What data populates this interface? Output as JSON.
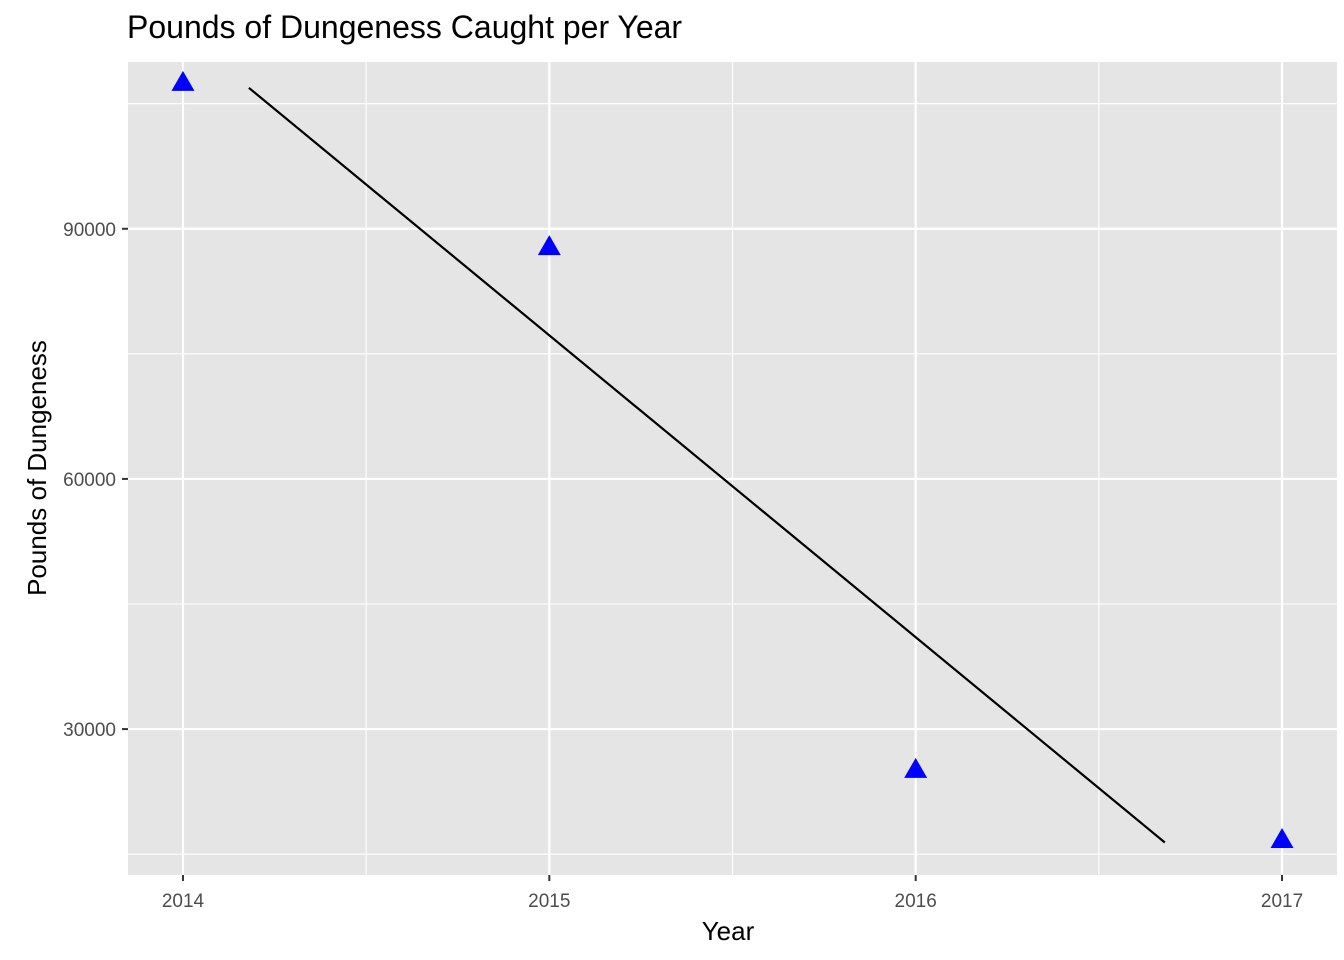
{
  "chart_data": {
    "type": "scatter",
    "title": "Pounds of Dungeness Caught per Year",
    "xlabel": "Year",
    "ylabel": "Pounds of Dungeness",
    "x_ticks": [
      "2014",
      "2015",
      "2016",
      "2017"
    ],
    "y_ticks": [
      "30000",
      "60000",
      "90000"
    ],
    "xlim": [
      2013.85,
      2017.15
    ],
    "ylim": [
      12500,
      110000
    ],
    "grid": true,
    "series": [
      {
        "marker": "triangle",
        "color": "#0000ff",
        "points": [
          {
            "x": 2014,
            "y": 107500
          },
          {
            "x": 2015,
            "y": 87800
          },
          {
            "x": 2016,
            "y": 25100
          },
          {
            "x": 2017,
            "y": 16700
          }
        ]
      }
    ],
    "trend_line": {
      "color": "#000000",
      "x": [
        2014.18,
        2016.68
      ],
      "y": [
        106900,
        16400
      ]
    },
    "colors": {
      "panel_background": "#e5e5e5",
      "grid": "#ffffff"
    }
  }
}
